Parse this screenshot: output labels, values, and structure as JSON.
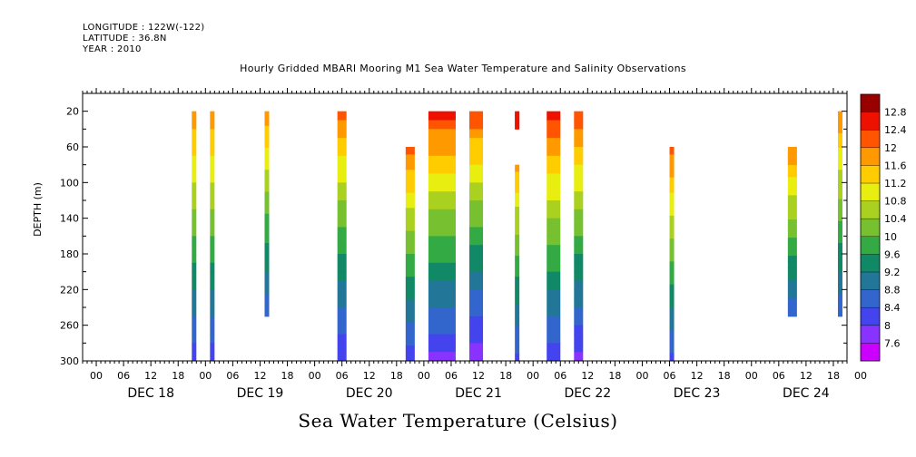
{
  "header": {
    "longitude": "LONGITUDE : 122W(-122)",
    "latitude": "LATITUDE : 36.8N",
    "year": "YEAR : 2010"
  },
  "chart_title": "Hourly Gridded MBARI Mooring M1 Sea Water Temperature and Salinity Observations",
  "main_title": "Sea Water Temperature (Celsius)",
  "chart_data": {
    "type": "heatmap",
    "title": "Hourly Gridded MBARI Mooring M1 Sea Water Temperature and Salinity Observations",
    "xlabel": "",
    "ylabel": "DEPTH (m)",
    "x_unit": "hours since DEC 18 00:00",
    "xlim": [
      -3,
      165
    ],
    "ylim": [
      300,
      0
    ],
    "y_ticks": [
      20,
      60,
      100,
      140,
      180,
      220,
      260,
      300
    ],
    "x_hour_ticks": [
      "00",
      "06",
      "12",
      "18",
      "00",
      "06",
      "12",
      "18",
      "00",
      "06",
      "12",
      "18",
      "00",
      "06",
      "12",
      "18",
      "00",
      "06",
      "12",
      "18",
      "00",
      "06",
      "12",
      "18",
      "00",
      "06",
      "12",
      "18",
      "00"
    ],
    "x_day_labels": [
      "DEC 18",
      "DEC 19",
      "DEC 20",
      "DEC 21",
      "DEC 22",
      "DEC 23",
      "DEC 24"
    ],
    "colorbar": {
      "levels": [
        7.6,
        8,
        8.4,
        8.8,
        9.2,
        9.6,
        10,
        10.4,
        10.8,
        11.2,
        11.6,
        12,
        12.4,
        12.8
      ],
      "tick_labels": [
        "7.6",
        "8",
        "8.4",
        "8.8",
        "9.2",
        "9.6",
        "10",
        "10.4",
        "10.8",
        "11.2",
        "11.6",
        "12",
        "12.4",
        "12.8"
      ]
    },
    "profiles": [
      {
        "t_start": 21,
        "t_end": 22,
        "top": 20,
        "bottom": 300,
        "t_top": 12.1,
        "t_bottom": 8.2
      },
      {
        "t_start": 25,
        "t_end": 26,
        "top": 20,
        "bottom": 300,
        "t_top": 12.1,
        "t_bottom": 8.2
      },
      {
        "t_start": 37,
        "t_end": 38,
        "top": 20,
        "bottom": 250,
        "t_top": 12.0,
        "t_bottom": 8.5
      },
      {
        "t_start": 53,
        "t_end": 55,
        "top": 20,
        "bottom": 300,
        "t_top": 12.2,
        "t_bottom": 8.0
      },
      {
        "t_start": 68,
        "t_end": 70,
        "top": 60,
        "bottom": 300,
        "t_top": 12.3,
        "t_bottom": 8.1
      },
      {
        "t_start": 73,
        "t_end": 79,
        "top": 20,
        "bottom": 300,
        "t_top": 12.6,
        "t_bottom": 7.9
      },
      {
        "t_start": 82,
        "t_end": 85,
        "top": 20,
        "bottom": 300,
        "t_top": 12.4,
        "t_bottom": 7.7
      },
      {
        "t_start": 92,
        "t_end": 93,
        "top": 20,
        "bottom": 40,
        "t_top": 12.6,
        "t_bottom": 12.6
      },
      {
        "t_start": 92,
        "t_end": 93,
        "top": 80,
        "bottom": 300,
        "t_top": 11.8,
        "t_bottom": 8.3
      },
      {
        "t_start": 99,
        "t_end": 102,
        "top": 20,
        "bottom": 300,
        "t_top": 12.7,
        "t_bottom": 8.1
      },
      {
        "t_start": 105,
        "t_end": 107,
        "top": 20,
        "bottom": 300,
        "t_top": 12.5,
        "t_bottom": 7.9
      },
      {
        "t_start": 126,
        "t_end": 127,
        "top": 60,
        "bottom": 300,
        "t_top": 12.3,
        "t_bottom": 8.3
      },
      {
        "t_start": 152,
        "t_end": 154,
        "top": 60,
        "bottom": 250,
        "t_top": 12.1,
        "t_bottom": 8.5
      },
      {
        "t_start": 163,
        "t_end": 164,
        "top": 20,
        "bottom": 250,
        "t_top": 12.1,
        "t_bottom": 8.5
      }
    ]
  },
  "colors": {
    "palette": [
      "#cc00ff",
      "#8833ff",
      "#4444ee",
      "#3366cc",
      "#227799",
      "#118866",
      "#33aa44",
      "#77c030",
      "#aad020",
      "#e8ee10",
      "#ffcc00",
      "#ff9900",
      "#ff5500",
      "#ee1100",
      "#990000"
    ]
  }
}
